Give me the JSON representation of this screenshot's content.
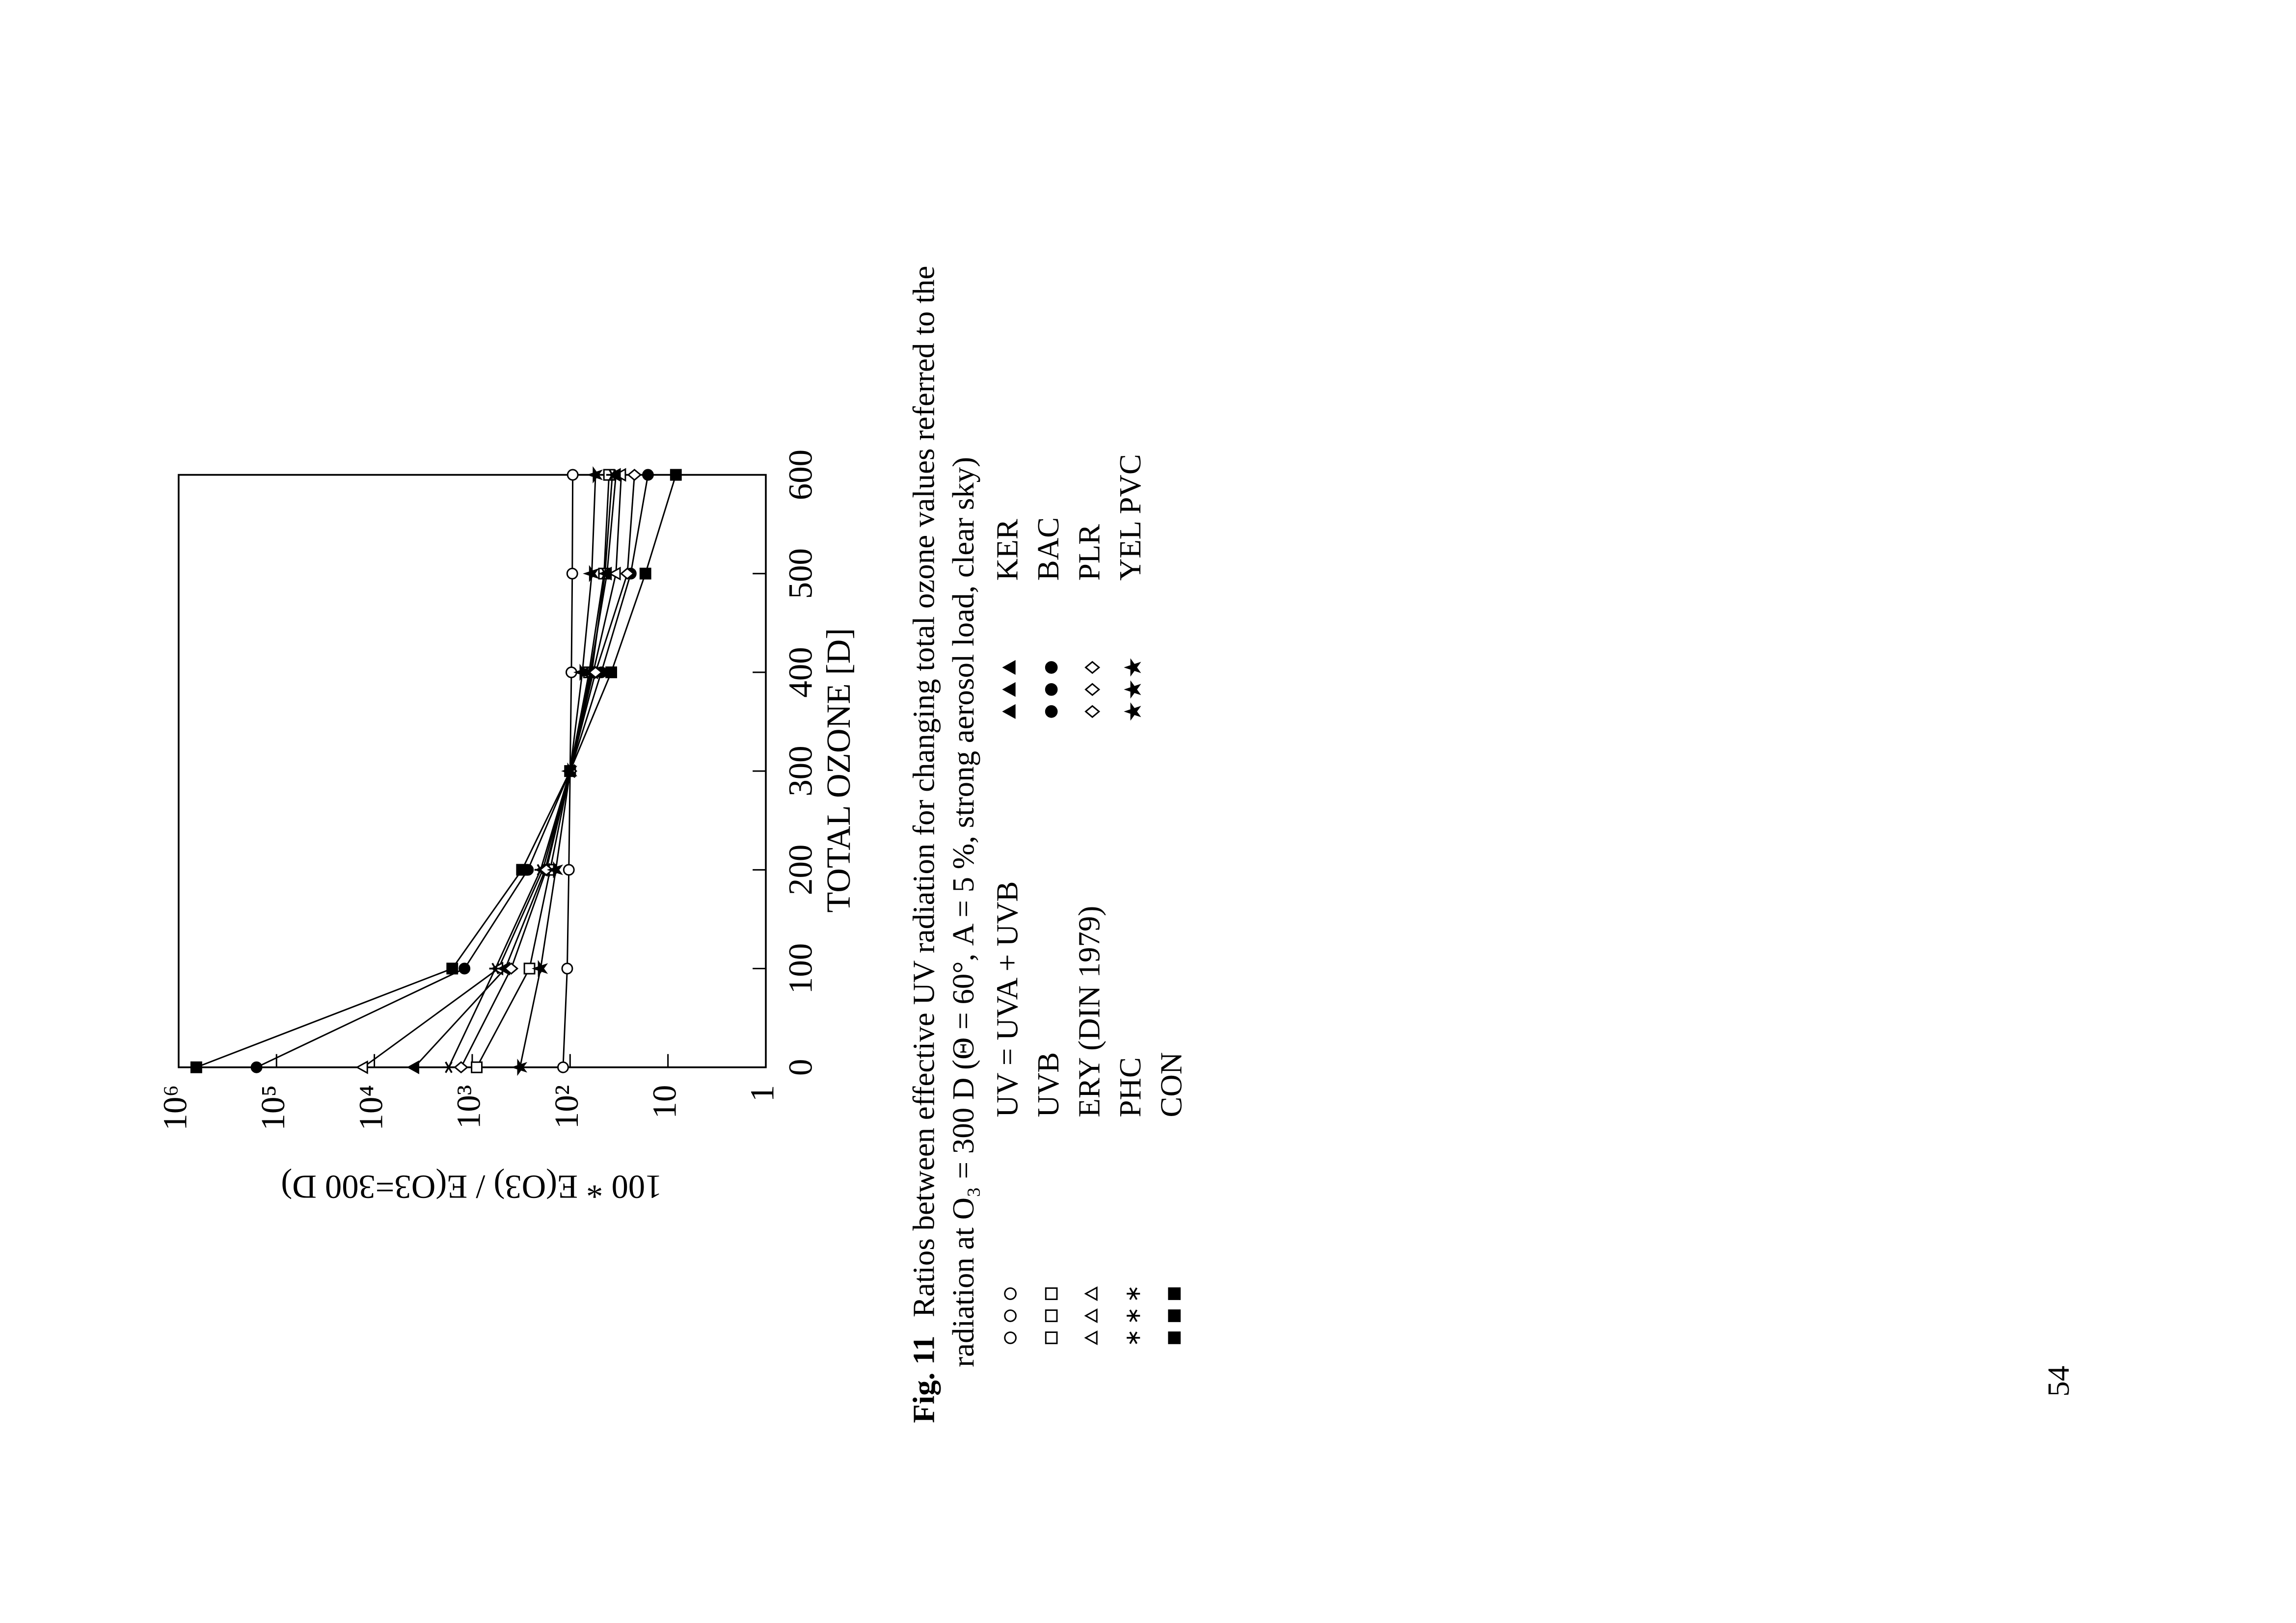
{
  "chart_data": {
    "type": "line",
    "x_label": "TOTAL  OZONE  [D]",
    "y_label": "100  *  E(O3)  /  E(O3=300  D)",
    "x": [
      0,
      100,
      200,
      300,
      400,
      500,
      600
    ],
    "xlim": [
      0,
      600
    ],
    "xticks": [
      0,
      100,
      200,
      300,
      400,
      500,
      600
    ],
    "ylim": [
      1,
      1000000
    ],
    "log_y": true,
    "yticks": [
      1,
      10,
      {
        "value": 100,
        "label": "10²"
      },
      {
        "value": 1000,
        "label": "10³"
      },
      {
        "value": 10000,
        "label": "10⁴"
      },
      {
        "value": 100000,
        "label": "10⁵"
      },
      {
        "value": 1000000,
        "label": "10⁶"
      }
    ],
    "series": [
      {
        "name": "UV = UVA + UVB",
        "marker": "circle-open",
        "color": "#000000",
        "values": [
          118,
          107,
          103,
          100,
          97,
          95,
          94
        ]
      },
      {
        "name": "UVB",
        "marker": "square-open",
        "color": "#000000",
        "values": [
          900,
          260,
          160,
          100,
          64,
          45,
          40
        ]
      },
      {
        "name": "ERY (DIN 1979)",
        "marker": "triangle-open",
        "color": "#000000",
        "values": [
          13000,
          540,
          190,
          100,
          58,
          34,
          30
        ]
      },
      {
        "name": "PHC",
        "marker": "asterisk",
        "color": "#000000",
        "values": [
          1740,
          580,
          200,
          100,
          60,
          44,
          37
        ]
      },
      {
        "name": "CON",
        "marker": "square-filled",
        "color": "#000000",
        "values": [
          660000,
          1600,
          310,
          100,
          38,
          17,
          8.3
        ]
      },
      {
        "name": "KER",
        "marker": "triangle-filled",
        "color": "#000000",
        "values": [
          3900,
          460,
          180,
          100,
          62,
          42,
          34
        ]
      },
      {
        "name": "BAC",
        "marker": "circle-filled",
        "color": "#000000",
        "values": [
          160000,
          1200,
          270,
          100,
          48,
          24,
          16
        ]
      },
      {
        "name": "PLR",
        "marker": "diamond-open",
        "color": "#000000",
        "values": [
          1300,
          400,
          175,
          100,
          55,
          26,
          22
        ]
      },
      {
        "name": "YEL PVC",
        "marker": "star-filled",
        "color": "#000000",
        "values": [
          325,
          200,
          140,
          100,
          75,
          60,
          55
        ]
      }
    ]
  },
  "caption": {
    "label": "Fig. 11",
    "line1": "Ratios between effective UV radiation for changing total ozone values referred to the",
    "line2": "radiation at O₃ = 300 D (Θ = 60°, A = 5 %, strong aerosol load, clear sky)"
  },
  "page_number": "54"
}
